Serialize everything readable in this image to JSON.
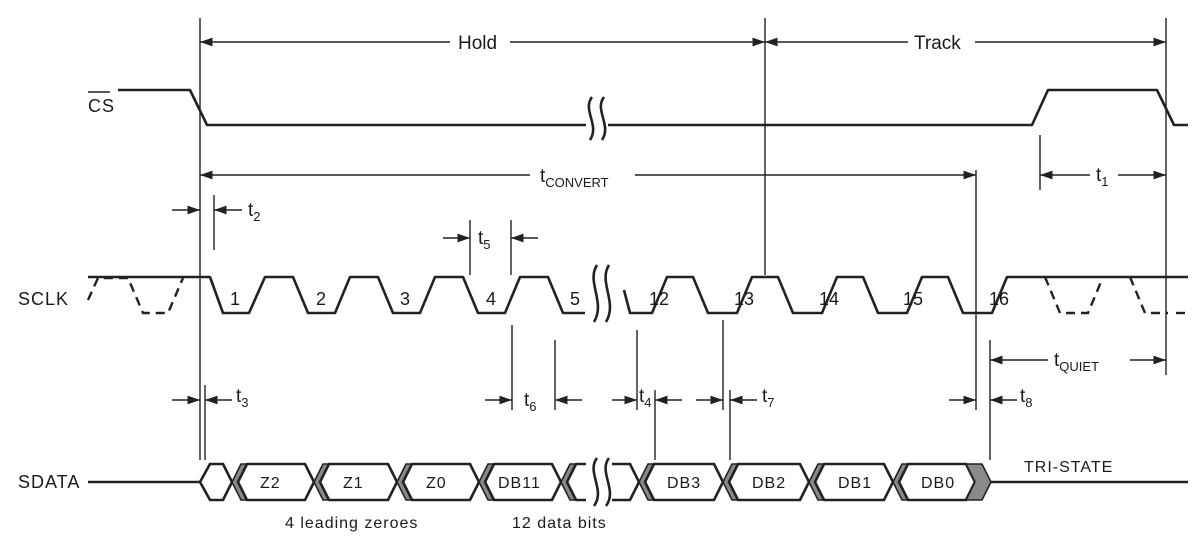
{
  "signals": {
    "cs": "CS",
    "sclk": "SCLK",
    "sdata": "SDATA"
  },
  "phases": {
    "hold": "Hold",
    "track": "Track"
  },
  "timing": {
    "t_convert": {
      "base": "t",
      "sub": "CONVERT"
    },
    "t1": {
      "base": "t",
      "sub": "1"
    },
    "t2": {
      "base": "t",
      "sub": "2"
    },
    "t3": {
      "base": "t",
      "sub": "3"
    },
    "t4": {
      "base": "t",
      "sub": "4"
    },
    "t5": {
      "base": "t",
      "sub": "5"
    },
    "t6": {
      "base": "t",
      "sub": "6"
    },
    "t7": {
      "base": "t",
      "sub": "7"
    },
    "t8": {
      "base": "t",
      "sub": "8"
    },
    "t_quiet": {
      "base": "t",
      "sub": "QUIET"
    }
  },
  "clock_numbers": [
    "1",
    "2",
    "3",
    "4",
    "5",
    "12",
    "13",
    "14",
    "15",
    "16"
  ],
  "data_bits": [
    "Z2",
    "Z1",
    "Z0",
    "DB11",
    "DB3",
    "DB2",
    "DB1",
    "DB0"
  ],
  "tri_state": "TRI-STATE",
  "captions": {
    "leading": "4 leading zeroes",
    "data": "12 data bits"
  }
}
